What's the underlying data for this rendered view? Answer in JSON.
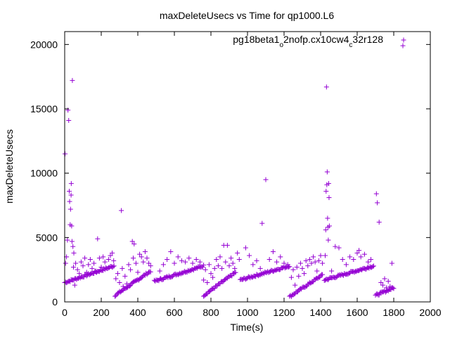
{
  "chart_data": {
    "type": "scatter",
    "title": "maxDeleteUsecs vs Time for qp1000.L6",
    "xlabel": "Time(s)",
    "ylabel": "maxDeleteUsecs",
    "xlim": [
      0,
      2000
    ],
    "ylim": [
      0,
      21000
    ],
    "xticks": [
      0,
      200,
      400,
      600,
      800,
      1000,
      1200,
      1400,
      1600,
      1800,
      2000
    ],
    "yticks": [
      0,
      5000,
      10000,
      15000,
      20000
    ],
    "grid": false,
    "legend_position": "top-right",
    "marker": "+",
    "series": [
      {
        "name": "pg18beta1_o2nofp.cx10cw4_c32r128",
        "legend_parts": [
          {
            "t": "pg18beta1",
            "sub": false
          },
          {
            "t": "o",
            "sub": true
          },
          {
            "t": "2nofp.cx10cw4",
            "sub": false
          },
          {
            "t": "c",
            "sub": true
          },
          {
            "t": "32r128",
            "sub": false
          }
        ],
        "color": "#9400d3",
        "ramps": [
          {
            "x0": 0,
            "x1": 270,
            "y0": 1500,
            "y1": 2800,
            "step": 5
          },
          {
            "x0": 275,
            "x1": 470,
            "y0": 500,
            "y1": 2400,
            "step": 5
          },
          {
            "x0": 490,
            "x1": 760,
            "y0": 1600,
            "y1": 2800,
            "step": 5
          },
          {
            "x0": 760,
            "x1": 935,
            "y0": 500,
            "y1": 2300,
            "step": 5
          },
          {
            "x0": 960,
            "x1": 1230,
            "y0": 1700,
            "y1": 2800,
            "step": 5
          },
          {
            "x0": 1230,
            "x1": 1410,
            "y0": 400,
            "y1": 2100,
            "step": 5
          },
          {
            "x0": 1420,
            "x1": 1690,
            "y0": 1700,
            "y1": 2800,
            "step": 5
          },
          {
            "x0": 1700,
            "x1": 1800,
            "y0": 500,
            "y1": 1100,
            "step": 5
          }
        ],
        "outliers": [
          [
            2,
            11500
          ],
          [
            5,
            3000
          ],
          [
            10,
            3500
          ],
          [
            15,
            4800
          ],
          [
            18,
            14900
          ],
          [
            22,
            14100
          ],
          [
            25,
            8600
          ],
          [
            27,
            7800
          ],
          [
            30,
            6000
          ],
          [
            32,
            7200
          ],
          [
            35,
            8300
          ],
          [
            36,
            9200
          ],
          [
            38,
            5900
          ],
          [
            40,
            4700
          ],
          [
            42,
            17200
          ],
          [
            45,
            4300
          ],
          [
            48,
            2700
          ],
          [
            50,
            3800
          ],
          [
            55,
            1300
          ],
          [
            60,
            3000
          ],
          [
            70,
            2500
          ],
          [
            80,
            2200
          ],
          [
            90,
            3100
          ],
          [
            100,
            2800
          ],
          [
            110,
            3400
          ],
          [
            120,
            2300
          ],
          [
            130,
            2900
          ],
          [
            140,
            3300
          ],
          [
            150,
            2600
          ],
          [
            160,
            3000
          ],
          [
            170,
            2400
          ],
          [
            180,
            4900
          ],
          [
            190,
            3400
          ],
          [
            200,
            2700
          ],
          [
            210,
            3500
          ],
          [
            220,
            3100
          ],
          [
            240,
            3300
          ],
          [
            250,
            3600
          ],
          [
            260,
            3800
          ],
          [
            268,
            3200
          ],
          [
            280,
            1800
          ],
          [
            290,
            2200
          ],
          [
            300,
            1500
          ],
          [
            310,
            7100
          ],
          [
            315,
            2600
          ],
          [
            320,
            1200
          ],
          [
            330,
            2000
          ],
          [
            340,
            1400
          ],
          [
            350,
            2900
          ],
          [
            360,
            2500
          ],
          [
            370,
            4700
          ],
          [
            375,
            3400
          ],
          [
            380,
            4500
          ],
          [
            390,
            3000
          ],
          [
            400,
            2300
          ],
          [
            410,
            3700
          ],
          [
            420,
            3500
          ],
          [
            430,
            3100
          ],
          [
            440,
            3900
          ],
          [
            450,
            3400
          ],
          [
            460,
            3000
          ],
          [
            470,
            2800
          ],
          [
            520,
            2400
          ],
          [
            540,
            2900
          ],
          [
            560,
            3300
          ],
          [
            580,
            3900
          ],
          [
            600,
            3000
          ],
          [
            620,
            3500
          ],
          [
            640,
            3200
          ],
          [
            660,
            3100
          ],
          [
            680,
            3400
          ],
          [
            700,
            3000
          ],
          [
            720,
            3300
          ],
          [
            740,
            3100
          ],
          [
            760,
            1700
          ],
          [
            770,
            2500
          ],
          [
            780,
            1500
          ],
          [
            790,
            2900
          ],
          [
            800,
            2200
          ],
          [
            810,
            1900
          ],
          [
            820,
            2600
          ],
          [
            830,
            3300
          ],
          [
            840,
            2800
          ],
          [
            850,
            3500
          ],
          [
            860,
            2600
          ],
          [
            870,
            4400
          ],
          [
            880,
            3100
          ],
          [
            890,
            4400
          ],
          [
            900,
            2800
          ],
          [
            910,
            3400
          ],
          [
            920,
            3000
          ],
          [
            930,
            2600
          ],
          [
            945,
            3800
          ],
          [
            955,
            3300
          ],
          [
            990,
            4200
          ],
          [
            1010,
            3600
          ],
          [
            1030,
            2900
          ],
          [
            1050,
            3200
          ],
          [
            1070,
            2600
          ],
          [
            1080,
            6100
          ],
          [
            1100,
            9500
          ],
          [
            1120,
            3300
          ],
          [
            1140,
            3900
          ],
          [
            1160,
            3100
          ],
          [
            1180,
            3500
          ],
          [
            1200,
            3000
          ],
          [
            1220,
            2900
          ],
          [
            1240,
            1900
          ],
          [
            1250,
            2500
          ],
          [
            1260,
            1300
          ],
          [
            1270,
            2700
          ],
          [
            1280,
            2000
          ],
          [
            1290,
            3000
          ],
          [
            1300,
            2600
          ],
          [
            1310,
            2200
          ],
          [
            1320,
            3200
          ],
          [
            1330,
            2800
          ],
          [
            1340,
            3300
          ],
          [
            1350,
            3000
          ],
          [
            1360,
            3500
          ],
          [
            1370,
            3100
          ],
          [
            1380,
            2400
          ],
          [
            1390,
            3200
          ],
          [
            1400,
            3600
          ],
          [
            1410,
            3000
          ],
          [
            1425,
            3600
          ],
          [
            1428,
            5600
          ],
          [
            1430,
            8600
          ],
          [
            1432,
            16700
          ],
          [
            1434,
            9100
          ],
          [
            1436,
            10100
          ],
          [
            1438,
            6500
          ],
          [
            1440,
            5800
          ],
          [
            1442,
            4800
          ],
          [
            1444,
            9200
          ],
          [
            1446,
            8100
          ],
          [
            1448,
            5900
          ],
          [
            1460,
            2400
          ],
          [
            1480,
            4300
          ],
          [
            1500,
            4200
          ],
          [
            1520,
            3300
          ],
          [
            1540,
            2900
          ],
          [
            1560,
            3500
          ],
          [
            1580,
            3300
          ],
          [
            1600,
            3800
          ],
          [
            1610,
            4000
          ],
          [
            1620,
            3500
          ],
          [
            1640,
            3700
          ],
          [
            1660,
            3100
          ],
          [
            1675,
            3300
          ],
          [
            1705,
            8400
          ],
          [
            1710,
            7700
          ],
          [
            1720,
            6200
          ],
          [
            1730,
            1500
          ],
          [
            1740,
            1300
          ],
          [
            1750,
            1800
          ],
          [
            1760,
            1100
          ],
          [
            1770,
            1600
          ],
          [
            1780,
            1200
          ],
          [
            1790,
            3000
          ],
          [
            1850,
            19900
          ]
        ]
      }
    ]
  }
}
